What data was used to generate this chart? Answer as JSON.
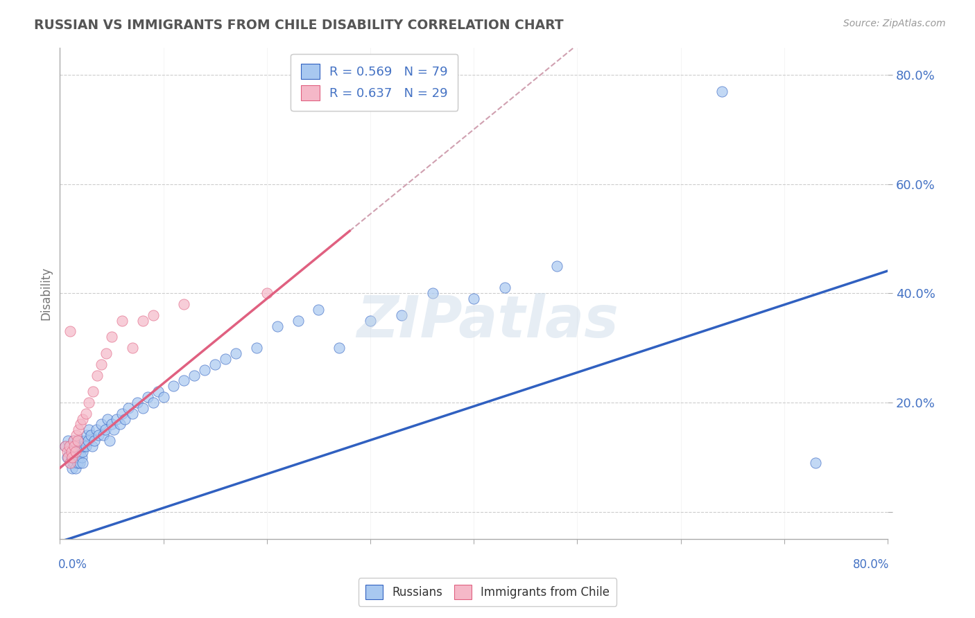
{
  "title": "RUSSIAN VS IMMIGRANTS FROM CHILE DISABILITY CORRELATION CHART",
  "source": "Source: ZipAtlas.com",
  "ylabel": "Disability",
  "xlim": [
    0,
    0.8
  ],
  "ylim": [
    -0.05,
    0.85
  ],
  "blue_R": 0.569,
  "blue_N": 79,
  "pink_R": 0.637,
  "pink_N": 29,
  "blue_color": "#a8c8f0",
  "pink_color": "#f5b8c8",
  "blue_line_color": "#3060c0",
  "pink_line_color": "#e06080",
  "pink_dash_color": "#d0a0b0",
  "grid_color": "#cccccc",
  "title_color": "#555555",
  "label_color": "#4472c4",
  "blue_scatter_x": [
    0.005,
    0.007,
    0.008,
    0.009,
    0.01,
    0.01,
    0.011,
    0.012,
    0.012,
    0.013,
    0.013,
    0.014,
    0.014,
    0.015,
    0.015,
    0.016,
    0.016,
    0.017,
    0.017,
    0.018,
    0.018,
    0.019,
    0.019,
    0.02,
    0.02,
    0.021,
    0.021,
    0.022,
    0.022,
    0.023,
    0.024,
    0.025,
    0.026,
    0.027,
    0.028,
    0.03,
    0.031,
    0.033,
    0.035,
    0.037,
    0.04,
    0.042,
    0.044,
    0.046,
    0.048,
    0.05,
    0.052,
    0.055,
    0.058,
    0.06,
    0.063,
    0.066,
    0.07,
    0.075,
    0.08,
    0.085,
    0.09,
    0.095,
    0.1,
    0.11,
    0.12,
    0.13,
    0.14,
    0.15,
    0.16,
    0.17,
    0.19,
    0.21,
    0.23,
    0.25,
    0.27,
    0.3,
    0.33,
    0.36,
    0.4,
    0.43,
    0.48,
    0.64,
    0.73
  ],
  "blue_scatter_y": [
    0.12,
    0.1,
    0.13,
    0.11,
    0.09,
    0.12,
    0.1,
    0.08,
    0.11,
    0.09,
    0.13,
    0.11,
    0.1,
    0.12,
    0.08,
    0.1,
    0.12,
    0.09,
    0.13,
    0.11,
    0.1,
    0.12,
    0.09,
    0.11,
    0.13,
    0.1,
    0.12,
    0.11,
    0.09,
    0.12,
    0.13,
    0.12,
    0.14,
    0.13,
    0.15,
    0.14,
    0.12,
    0.13,
    0.15,
    0.14,
    0.16,
    0.14,
    0.15,
    0.17,
    0.13,
    0.16,
    0.15,
    0.17,
    0.16,
    0.18,
    0.17,
    0.19,
    0.18,
    0.2,
    0.19,
    0.21,
    0.2,
    0.22,
    0.21,
    0.23,
    0.24,
    0.25,
    0.26,
    0.27,
    0.28,
    0.29,
    0.3,
    0.34,
    0.35,
    0.37,
    0.3,
    0.35,
    0.36,
    0.4,
    0.39,
    0.41,
    0.45,
    0.77,
    0.09
  ],
  "pink_scatter_x": [
    0.005,
    0.007,
    0.008,
    0.009,
    0.01,
    0.011,
    0.012,
    0.013,
    0.014,
    0.015,
    0.016,
    0.017,
    0.018,
    0.02,
    0.022,
    0.025,
    0.028,
    0.032,
    0.036,
    0.04,
    0.045,
    0.05,
    0.06,
    0.07,
    0.08,
    0.09,
    0.12,
    0.2,
    0.01
  ],
  "pink_scatter_y": [
    0.12,
    0.11,
    0.1,
    0.12,
    0.09,
    0.11,
    0.1,
    0.13,
    0.12,
    0.11,
    0.14,
    0.13,
    0.15,
    0.16,
    0.17,
    0.18,
    0.2,
    0.22,
    0.25,
    0.27,
    0.29,
    0.32,
    0.35,
    0.3,
    0.35,
    0.36,
    0.38,
    0.4,
    0.33
  ],
  "ytick_positions": [
    0.0,
    0.2,
    0.4,
    0.6,
    0.8
  ],
  "ytick_labels": [
    "",
    "20.0%",
    "40.0%",
    "60.0%",
    "80.0%"
  ],
  "xtick_positions": [
    0.0,
    0.1,
    0.2,
    0.3,
    0.4,
    0.5,
    0.6,
    0.7,
    0.8
  ],
  "background_color": "#ffffff",
  "plot_bg_color": "#ffffff",
  "blue_line_intercept": -0.055,
  "blue_line_slope": 0.62,
  "pink_line_intercept": 0.08,
  "pink_line_slope": 1.55
}
